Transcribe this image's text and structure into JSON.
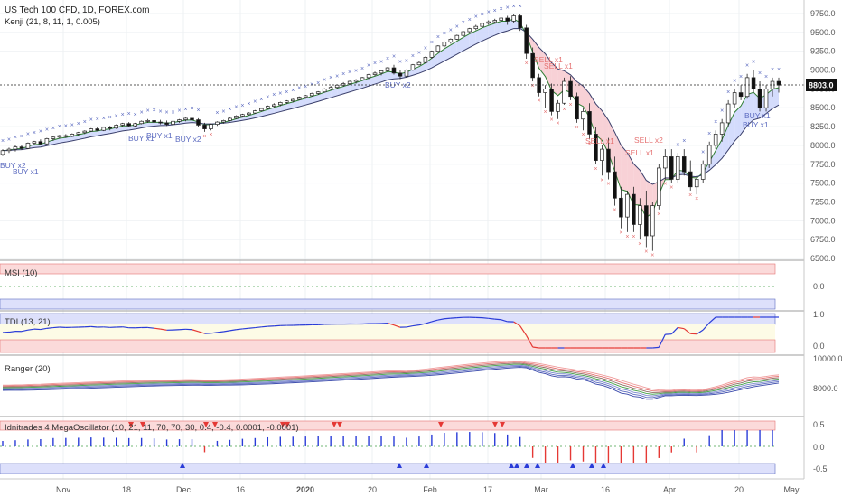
{
  "header": {
    "symbol_line": "US Tech 100 CFD, 1D, FOREX.com",
    "indicator_line": "Kenji (21, 8, 11, 1, 0.005)"
  },
  "price_tag": "8803.0",
  "colors": {
    "up": "#2b3a8c",
    "down": "#111111",
    "sell": "#e57373",
    "buy": "#5c6bc0",
    "sell_zone": "#fbdada",
    "buy_zone": "#dde0fb",
    "envelope_fill": "#cdd6fb",
    "envelope_fill_down": "#f7c9cf",
    "osc_up": "#2a3cd8",
    "osc_down": "#e53935"
  },
  "panes": {
    "msi": "MSI (10)",
    "tdi": "TDI (13, 21)",
    "ranger": "Ranger (20)",
    "osc": "Idnitrades 4 MegaOscillator (10, 21, 11, 70, 70, 30, 0.4, -0.4, 0.0001, -0.0001)"
  },
  "price_axis": [
    "9750.0",
    "9500.0",
    "9250.0",
    "9000.0",
    "8750.0",
    "8500.0",
    "8250.0",
    "8000.0",
    "7750.0",
    "7500.0",
    "7250.0",
    "7000.0",
    "6750.0",
    "6500.0"
  ],
  "msi_axis": [
    "0.0"
  ],
  "tdi_axis": [
    "1.0",
    "0.0"
  ],
  "ranger_axis": [
    "10000.0",
    "8000.0"
  ],
  "osc_axis": [
    "0.5",
    "0.0",
    "-0.5"
  ],
  "time_axis": [
    "Nov",
    "18",
    "Dec",
    "16",
    "2020",
    "20",
    "Feb",
    "17",
    "Mar",
    "16",
    "Apr",
    "20",
    "May"
  ],
  "signals": {
    "buy": [
      "BUY x2",
      "BUY x1",
      "BUY x1",
      "BUY x1",
      "BUY x2",
      "BUY x2",
      "BUY x1",
      "BUY x1"
    ],
    "sell": [
      "SELL x1",
      "SELL x1",
      "SELL x1",
      "SELL x2",
      "SELL x1"
    ]
  },
  "chart_data": {
    "type": "candlestick",
    "title": "US Tech 100 CFD, 1D, FOREX.com",
    "candles": [
      [
        7880,
        7950,
        7860,
        7930
      ],
      [
        7930,
        7970,
        7900,
        7950
      ],
      [
        7950,
        8000,
        7920,
        7980
      ],
      [
        7980,
        8010,
        7940,
        7960
      ],
      [
        7960,
        8040,
        7950,
        8030
      ],
      [
        8030,
        8060,
        8000,
        8050
      ],
      [
        8050,
        8080,
        8010,
        8020
      ],
      [
        8020,
        8100,
        8010,
        8090
      ],
      [
        8090,
        8120,
        8060,
        8110
      ],
      [
        8110,
        8140,
        8090,
        8130
      ],
      [
        8130,
        8150,
        8100,
        8120
      ],
      [
        8120,
        8160,
        8110,
        8150
      ],
      [
        8150,
        8180,
        8130,
        8170
      ],
      [
        8170,
        8200,
        8150,
        8190
      ],
      [
        8190,
        8230,
        8180,
        8220
      ],
      [
        8220,
        8240,
        8190,
        8200
      ],
      [
        8200,
        8250,
        8190,
        8240
      ],
      [
        8240,
        8260,
        8200,
        8230
      ],
      [
        8230,
        8280,
        8220,
        8270
      ],
      [
        8270,
        8300,
        8250,
        8290
      ],
      [
        8290,
        8310,
        8240,
        8260
      ],
      [
        8260,
        8300,
        8240,
        8290
      ],
      [
        8290,
        8330,
        8280,
        8320
      ],
      [
        8320,
        8350,
        8300,
        8330
      ],
      [
        8330,
        8360,
        8300,
        8310
      ],
      [
        8310,
        8340,
        8280,
        8300
      ],
      [
        8300,
        8330,
        8260,
        8280
      ],
      [
        8280,
        8330,
        8270,
        8320
      ],
      [
        8320,
        8350,
        8300,
        8340
      ],
      [
        8340,
        8370,
        8320,
        8360
      ],
      [
        8360,
        8380,
        8330,
        8340
      ],
      [
        8340,
        8360,
        8250,
        8270
      ],
      [
        8270,
        8300,
        8180,
        8220
      ],
      [
        8220,
        8290,
        8200,
        8280
      ],
      [
        8280,
        8320,
        8260,
        8310
      ],
      [
        8310,
        8340,
        8290,
        8330
      ],
      [
        8330,
        8370,
        8320,
        8360
      ],
      [
        8360,
        8400,
        8350,
        8390
      ],
      [
        8390,
        8420,
        8370,
        8410
      ],
      [
        8410,
        8440,
        8400,
        8430
      ],
      [
        8430,
        8470,
        8420,
        8460
      ],
      [
        8460,
        8500,
        8450,
        8490
      ],
      [
        8490,
        8530,
        8480,
        8520
      ],
      [
        8520,
        8560,
        8500,
        8540
      ],
      [
        8540,
        8580,
        8520,
        8570
      ],
      [
        8570,
        8600,
        8550,
        8590
      ],
      [
        8590,
        8620,
        8570,
        8610
      ],
      [
        8610,
        8650,
        8600,
        8640
      ],
      [
        8640,
        8670,
        8620,
        8660
      ],
      [
        8660,
        8700,
        8650,
        8690
      ],
      [
        8690,
        8720,
        8670,
        8710
      ],
      [
        8710,
        8760,
        8700,
        8750
      ],
      [
        8750,
        8790,
        8730,
        8770
      ],
      [
        8770,
        8810,
        8750,
        8800
      ],
      [
        8800,
        8840,
        8780,
        8820
      ],
      [
        8820,
        8860,
        8800,
        8850
      ],
      [
        8850,
        8880,
        8820,
        8870
      ],
      [
        8870,
        8910,
        8860,
        8900
      ],
      [
        8900,
        8950,
        8880,
        8940
      ],
      [
        8940,
        8980,
        8920,
        8960
      ],
      [
        8960,
        9000,
        8930,
        8990
      ],
      [
        8990,
        9040,
        8980,
        9030
      ],
      [
        9030,
        9070,
        8940,
        8960
      ],
      [
        8960,
        9000,
        8880,
        8920
      ],
      [
        8920,
        9010,
        8900,
        9000
      ],
      [
        9000,
        9080,
        8990,
        9070
      ],
      [
        9070,
        9120,
        9060,
        9100
      ],
      [
        9100,
        9180,
        9090,
        9170
      ],
      [
        9170,
        9260,
        9150,
        9250
      ],
      [
        9250,
        9330,
        9230,
        9320
      ],
      [
        9320,
        9380,
        9300,
        9370
      ],
      [
        9370,
        9420,
        9350,
        9410
      ],
      [
        9410,
        9470,
        9400,
        9460
      ],
      [
        9460,
        9520,
        9450,
        9510
      ],
      [
        9510,
        9560,
        9490,
        9550
      ],
      [
        9550,
        9600,
        9530,
        9580
      ],
      [
        9580,
        9630,
        9560,
        9620
      ],
      [
        9620,
        9660,
        9600,
        9640
      ],
      [
        9640,
        9680,
        9620,
        9660
      ],
      [
        9660,
        9700,
        9640,
        9690
      ],
      [
        9690,
        9720,
        9600,
        9650
      ],
      [
        9650,
        9740,
        9630,
        9720
      ],
      [
        9720,
        9740,
        9520,
        9560
      ],
      [
        9560,
        9600,
        9150,
        9220
      ],
      [
        9220,
        9300,
        8850,
        8900
      ],
      [
        8900,
        8950,
        8650,
        8700
      ],
      [
        8700,
        8800,
        8500,
        8750
      ],
      [
        8750,
        8820,
        8400,
        8450
      ],
      [
        8450,
        8600,
        8350,
        8560
      ],
      [
        8560,
        8900,
        8540,
        8850
      ],
      [
        8850,
        8920,
        8600,
        8650
      ],
      [
        8650,
        8700,
        8300,
        8350
      ],
      [
        8350,
        8500,
        8200,
        8450
      ],
      [
        8450,
        8560,
        8080,
        8150
      ],
      [
        8150,
        8250,
        7750,
        7800
      ],
      [
        7800,
        8000,
        7600,
        7950
      ],
      [
        7950,
        8100,
        7550,
        7650
      ],
      [
        7650,
        7850,
        7200,
        7300
      ],
      [
        7300,
        7450,
        6900,
        7050
      ],
      [
        7050,
        7400,
        6850,
        7350
      ],
      [
        7350,
        7450,
        6850,
        6950
      ],
      [
        6950,
        7300,
        6750,
        7200
      ],
      [
        7200,
        7400,
        6650,
        6800
      ],
      [
        6800,
        7250,
        6600,
        7200
      ],
      [
        7200,
        7750,
        7150,
        7700
      ],
      [
        7700,
        7950,
        7550,
        7850
      ],
      [
        7850,
        7950,
        7500,
        7550
      ],
      [
        7550,
        7900,
        7500,
        7850
      ],
      [
        7850,
        7950,
        7600,
        7650
      ],
      [
        7650,
        7800,
        7400,
        7450
      ],
      [
        7450,
        7600,
        7350,
        7550
      ],
      [
        7550,
        7800,
        7500,
        7750
      ],
      [
        7750,
        8050,
        7700,
        8000
      ],
      [
        8000,
        8200,
        7950,
        8150
      ],
      [
        8150,
        8350,
        8050,
        8300
      ],
      [
        8300,
        8600,
        8250,
        8550
      ],
      [
        8550,
        8750,
        8500,
        8700
      ],
      [
        8700,
        8800,
        8600,
        8650
      ],
      [
        8650,
        8950,
        8620,
        8900
      ],
      [
        8900,
        9000,
        8700,
        8750
      ],
      [
        8750,
        8850,
        8450,
        8500
      ],
      [
        8500,
        8800,
        8450,
        8750
      ],
      [
        8750,
        8900,
        8650,
        8850
      ],
      [
        8850,
        8900,
        8700,
        8800
      ]
    ]
  }
}
